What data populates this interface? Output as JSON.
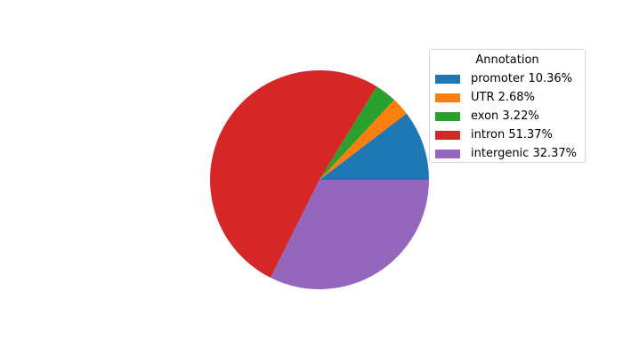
{
  "chart_data": {
    "type": "pie",
    "title": "",
    "start_angle_deg": 0,
    "direction": "counterclockwise",
    "legend_title": "Annotation",
    "legend_placement": "upper-right",
    "slices": [
      {
        "label": "promoter 10.36%",
        "name": "promoter",
        "value": 10.36,
        "color": "#1f77b4"
      },
      {
        "label": "UTR 2.68%",
        "name": "UTR",
        "value": 2.68,
        "color": "#ff7f0e"
      },
      {
        "label": "exon 3.22%",
        "name": "exon",
        "value": 3.22,
        "color": "#2ca02c"
      },
      {
        "label": "intron 51.37%",
        "name": "intron",
        "value": 51.37,
        "color": "#d62728"
      },
      {
        "label": "intergenic 32.37%",
        "name": "intergenic",
        "value": 32.37,
        "color": "#9467bd"
      }
    ]
  }
}
